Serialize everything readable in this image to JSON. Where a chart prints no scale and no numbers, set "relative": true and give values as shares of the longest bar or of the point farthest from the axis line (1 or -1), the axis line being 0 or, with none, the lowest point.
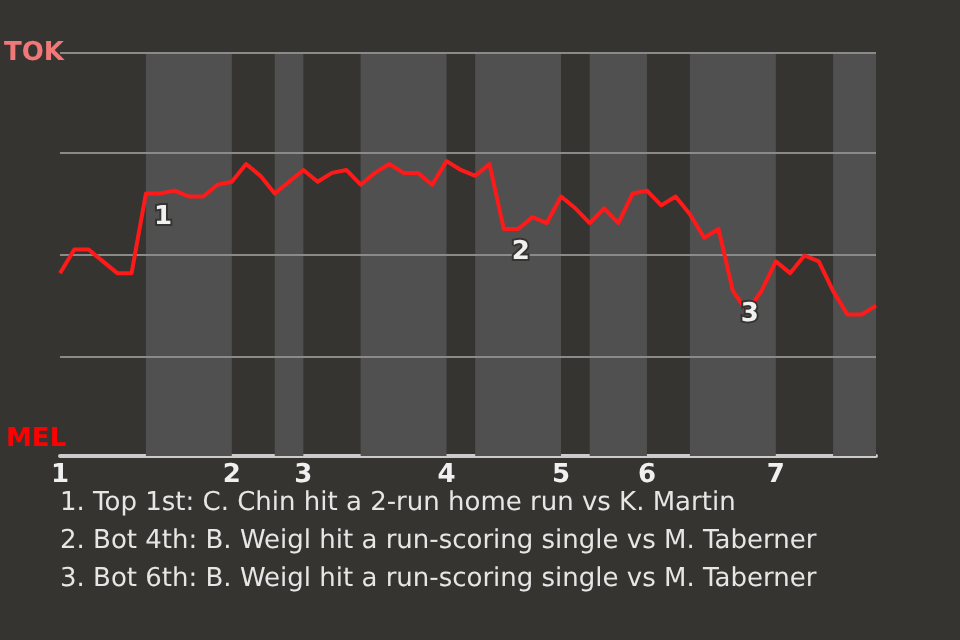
{
  "chart_data": {
    "type": "line",
    "relative": true,
    "categories": [
      "1",
      null,
      null,
      null,
      null,
      null,
      null,
      null,
      null,
      null,
      null,
      null,
      "2",
      null,
      null,
      null,
      null,
      "3",
      null,
      null,
      null,
      null,
      null,
      null,
      null,
      null,
      null,
      "4",
      null,
      null,
      null,
      null,
      null,
      null,
      null,
      "5",
      null,
      null,
      null,
      null,
      null,
      "6",
      null,
      null,
      null,
      null,
      null,
      null,
      null,
      null,
      "7",
      null,
      null,
      null,
      null,
      null,
      null,
      null
    ],
    "series": [
      {
        "color": "#ff1a1a",
        "values": [
          0.62,
          0.7,
          0.7,
          0.66,
          0.62,
          0.62,
          0.89,
          0.89,
          0.9,
          0.88,
          0.88,
          0.92,
          0.93,
          0.99,
          0.95,
          0.89,
          0.93,
          0.97,
          0.93,
          0.96,
          0.97,
          0.92,
          0.96,
          0.99,
          0.96,
          0.96,
          0.92,
          1,
          0.97,
          0.95,
          0.99,
          0.77,
          0.77,
          0.81,
          0.79,
          0.88,
          0.84,
          0.79,
          0.84,
          0.79,
          0.89,
          0.9,
          0.85,
          0.88,
          0.82,
          0.74,
          0.77,
          0.56,
          0.49,
          0.56,
          0.66,
          0.62,
          0.68,
          0.66,
          0.56,
          0.48,
          0.48,
          0.51
        ]
      }
    ],
    "ref_lines": [
      {
        "axis": "y",
        "value": 0.34,
        "color": "#8a8a8a"
      },
      {
        "axis": "y",
        "value": 0.68,
        "color": "#8a8a8a"
      },
      {
        "axis": "y",
        "value": 1.03,
        "color": "#8a8a8a"
      },
      {
        "axis": "y",
        "value": 1.37,
        "color": "#8a8a8a"
      }
    ],
    "marker": "none",
    "annotations": [
      "TOK",
      "MEL",
      {
        "text": "1",
        "y": 0.89
      },
      {
        "text": "2",
        "y": 0.77
      },
      {
        "text": "3",
        "y": 0.56
      },
      "1. Top 1st: C. Chin hit a 2-run home run vs K. Martin",
      "2. Bot 4th: B. Weigl hit a run-scoring single vs M. Taberner",
      "3. Bot 6th: B. Weigl hit a run-scoring single vs M. Taberner"
    ]
  }
}
